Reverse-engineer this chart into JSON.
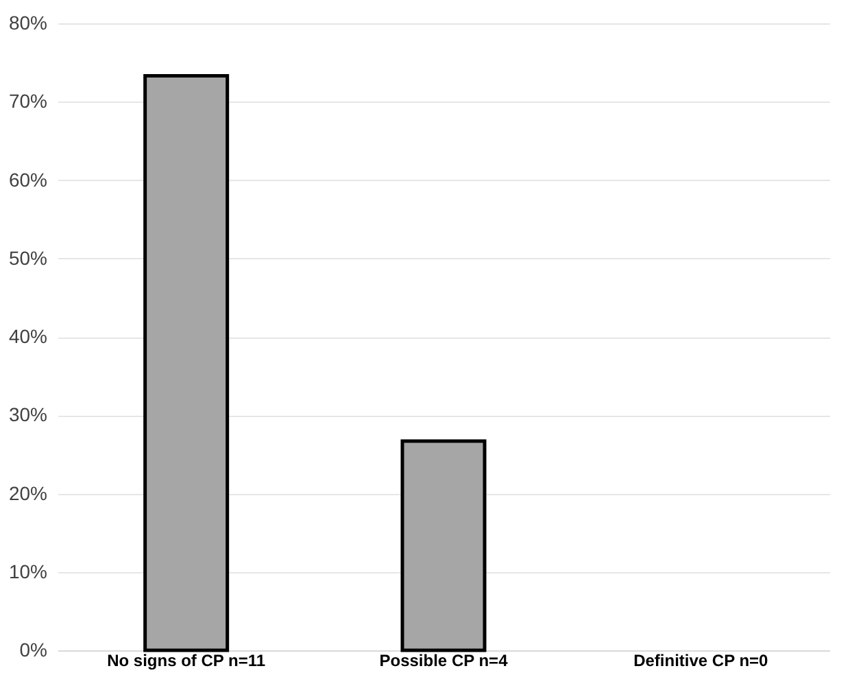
{
  "chart_data": {
    "type": "bar",
    "categories": [
      "No signs of CP n=11",
      "Possible CP n=4",
      "Definitive CP n=0"
    ],
    "series": [
      {
        "color": "#a6a6a6",
        "values": [
          73.3,
          26.7,
          0
        ]
      }
    ],
    "ylim": [
      0,
      80
    ],
    "yticks": [
      {
        "value": 0,
        "label": "0%"
      },
      {
        "value": 10,
        "label": "10%"
      },
      {
        "value": 20,
        "label": "20%"
      },
      {
        "value": 30,
        "label": "30%"
      },
      {
        "value": 40,
        "label": "40%"
      },
      {
        "value": 50,
        "label": "50%"
      },
      {
        "value": 60,
        "label": "60%"
      },
      {
        "value": 70,
        "label": "70%"
      },
      {
        "value": 80,
        "label": "80%"
      }
    ],
    "grid": "y"
  }
}
